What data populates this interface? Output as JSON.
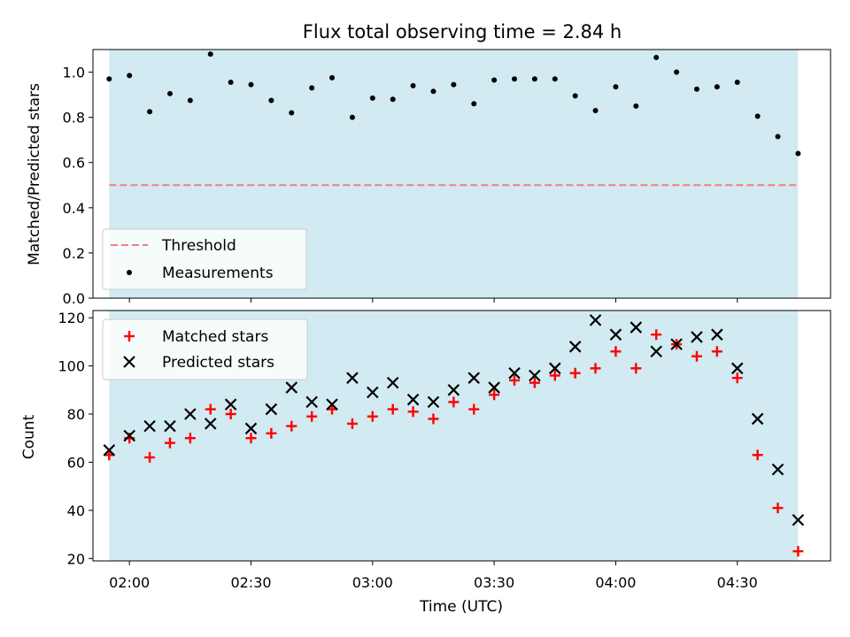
{
  "colors": {
    "shade": "#add8e6",
    "threshold": "#f08080",
    "measurement": "#000000",
    "matched": "#ff0000",
    "predicted": "#000000"
  },
  "chart_data": [
    {
      "type": "scatter",
      "title": "Flux total observing time = 2.84 h",
      "xlabel": "",
      "ylabel": "Matched/Predicted stars",
      "xlim": [
        "01:51",
        "04:53"
      ],
      "ylim": [
        0.0,
        1.1
      ],
      "yticks": [
        "0.0",
        "0.2",
        "0.4",
        "0.6",
        "0.8",
        "1.0"
      ],
      "observing_window": [
        "01:55",
        "04:45"
      ],
      "threshold": 0.5,
      "legend": {
        "position": "lower left",
        "entries": [
          "Threshold",
          "Measurements"
        ]
      },
      "series": [
        {
          "name": "Measurements",
          "marker": "dot",
          "points": [
            [
              "01:55",
              0.97
            ],
            [
              "02:00",
              0.985
            ],
            [
              "02:05",
              0.825
            ],
            [
              "02:10",
              0.905
            ],
            [
              "02:15",
              0.875
            ],
            [
              "02:20",
              1.08
            ],
            [
              "02:25",
              0.955
            ],
            [
              "02:30",
              0.945
            ],
            [
              "02:35",
              0.875
            ],
            [
              "02:40",
              0.82
            ],
            [
              "02:45",
              0.93
            ],
            [
              "02:50",
              0.975
            ],
            [
              "02:55",
              0.8
            ],
            [
              "03:00",
              0.885
            ],
            [
              "03:05",
              0.88
            ],
            [
              "03:10",
              0.94
            ],
            [
              "03:15",
              0.915
            ],
            [
              "03:20",
              0.945
            ],
            [
              "03:25",
              0.86
            ],
            [
              "03:30",
              0.965
            ],
            [
              "03:35",
              0.97
            ],
            [
              "03:40",
              0.97
            ],
            [
              "03:45",
              0.97
            ],
            [
              "03:50",
              0.895
            ],
            [
              "03:55",
              0.83
            ],
            [
              "04:00",
              0.935
            ],
            [
              "04:05",
              0.85
            ],
            [
              "04:10",
              1.065
            ],
            [
              "04:15",
              1.0
            ],
            [
              "04:20",
              0.925
            ],
            [
              "04:25",
              0.935
            ],
            [
              "04:30",
              0.955
            ],
            [
              "04:35",
              0.805
            ],
            [
              "04:40",
              0.715
            ],
            [
              "04:45",
              0.64
            ]
          ]
        }
      ]
    },
    {
      "type": "scatter",
      "title": "",
      "xlabel": "Time (UTC)",
      "ylabel": "Count",
      "xlim": [
        "01:51",
        "04:53"
      ],
      "ylim": [
        19,
        123
      ],
      "xticks": [
        "02:00",
        "02:30",
        "03:00",
        "03:30",
        "04:00",
        "04:30"
      ],
      "yticks": [
        "20",
        "40",
        "60",
        "80",
        "100",
        "120"
      ],
      "observing_window": [
        "01:55",
        "04:45"
      ],
      "legend": {
        "position": "upper left",
        "entries": [
          "Matched stars",
          "Predicted stars"
        ]
      },
      "series": [
        {
          "name": "Matched stars",
          "marker": "plus",
          "points": [
            [
              "01:55",
              63
            ],
            [
              "02:00",
              70
            ],
            [
              "02:05",
              62
            ],
            [
              "02:10",
              68
            ],
            [
              "02:15",
              70
            ],
            [
              "02:20",
              82
            ],
            [
              "02:25",
              80
            ],
            [
              "02:30",
              70
            ],
            [
              "02:35",
              72
            ],
            [
              "02:40",
              75
            ],
            [
              "02:45",
              79
            ],
            [
              "02:50",
              82
            ],
            [
              "02:55",
              76
            ],
            [
              "03:00",
              79
            ],
            [
              "03:05",
              82
            ],
            [
              "03:10",
              81
            ],
            [
              "03:15",
              78
            ],
            [
              "03:20",
              85
            ],
            [
              "03:25",
              82
            ],
            [
              "03:30",
              88
            ],
            [
              "03:35",
              94
            ],
            [
              "03:40",
              93
            ],
            [
              "03:45",
              96
            ],
            [
              "03:50",
              97
            ],
            [
              "03:55",
              99
            ],
            [
              "04:00",
              106
            ],
            [
              "04:05",
              99
            ],
            [
              "04:10",
              113
            ],
            [
              "04:15",
              109
            ],
            [
              "04:20",
              104
            ],
            [
              "04:25",
              106
            ],
            [
              "04:30",
              95
            ],
            [
              "04:35",
              63
            ],
            [
              "04:40",
              41
            ],
            [
              "04:45",
              23
            ]
          ]
        },
        {
          "name": "Predicted stars",
          "marker": "x",
          "points": [
            [
              "01:55",
              65
            ],
            [
              "02:00",
              71
            ],
            [
              "02:05",
              75
            ],
            [
              "02:10",
              75
            ],
            [
              "02:15",
              80
            ],
            [
              "02:20",
              76
            ],
            [
              "02:25",
              84
            ],
            [
              "02:30",
              74
            ],
            [
              "02:35",
              82
            ],
            [
              "02:40",
              91
            ],
            [
              "02:45",
              85
            ],
            [
              "02:50",
              84
            ],
            [
              "02:55",
              95
            ],
            [
              "03:00",
              89
            ],
            [
              "03:05",
              93
            ],
            [
              "03:10",
              86
            ],
            [
              "03:15",
              85
            ],
            [
              "03:20",
              90
            ],
            [
              "03:25",
              95
            ],
            [
              "03:30",
              91
            ],
            [
              "03:35",
              97
            ],
            [
              "03:40",
              96
            ],
            [
              "03:45",
              99
            ],
            [
              "03:50",
              108
            ],
            [
              "03:55",
              119
            ],
            [
              "04:00",
              113
            ],
            [
              "04:05",
              116
            ],
            [
              "04:10",
              106
            ],
            [
              "04:15",
              109
            ],
            [
              "04:20",
              112
            ],
            [
              "04:25",
              113
            ],
            [
              "04:30",
              99
            ],
            [
              "04:35",
              78
            ],
            [
              "04:40",
              57
            ],
            [
              "04:45",
              36
            ]
          ]
        }
      ]
    }
  ]
}
